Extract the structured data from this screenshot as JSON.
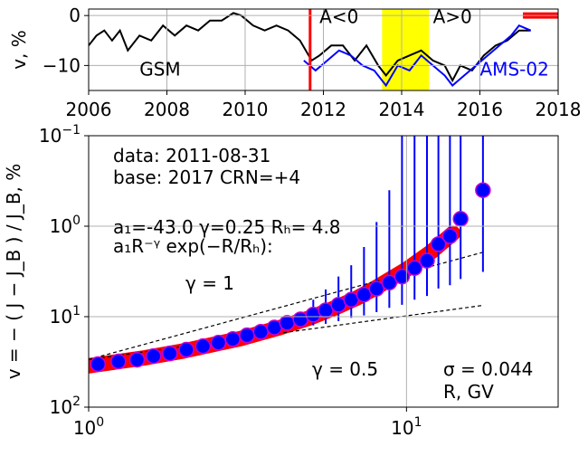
{
  "chart_data": [
    {
      "type": "line",
      "ylabel": "v, %",
      "xlim": [
        2006,
        2018
      ],
      "ylim": [
        -15,
        1.3
      ],
      "xticks": [
        2006,
        2008,
        2010,
        2012,
        2014,
        2016,
        2018
      ],
      "yticks": [
        {
          "value": -10,
          "label": "−10"
        },
        0
      ],
      "grid": true,
      "series": [
        {
          "name": "GSM",
          "color": "#000000",
          "x": [
            2006.0,
            2006.2,
            2006.4,
            2006.6,
            2006.8,
            2007.0,
            2007.3,
            2007.6,
            2007.9,
            2008.2,
            2008.5,
            2008.8,
            2009.1,
            2009.4,
            2009.7,
            2009.9,
            2010.2,
            2010.5,
            2010.8,
            2011.1,
            2011.4,
            2011.7,
            2011.9,
            2012.2,
            2012.5,
            2012.8,
            2013.1,
            2013.4,
            2013.6,
            2013.9,
            2014.2,
            2014.5,
            2014.8,
            2015.1,
            2015.3,
            2015.5,
            2015.8,
            2016.1,
            2016.4,
            2016.7,
            2017.0,
            2017.3
          ],
          "values": [
            -6,
            -4,
            -3,
            -5,
            -3,
            -7,
            -4,
            -5,
            -2,
            -4,
            -2,
            -3,
            -1,
            -1,
            0.5,
            0,
            -2,
            -3,
            -2,
            -3,
            -5,
            -9,
            -8,
            -6,
            -6,
            -9,
            -6,
            -10,
            -12,
            -9,
            -8,
            -7,
            -9,
            -10,
            -13,
            -10,
            -11,
            -8,
            -6,
            -5,
            -3,
            -3
          ],
          "label_x": 2007.3,
          "label_y": -12
        },
        {
          "name": "AMS-02",
          "color": "#0000ff",
          "x": [
            2011.5,
            2011.8,
            2012.1,
            2012.4,
            2012.7,
            2013.0,
            2013.3,
            2013.6,
            2013.9,
            2014.2,
            2014.5,
            2014.8,
            2015.1,
            2015.3,
            2015.6,
            2015.9,
            2016.2,
            2016.5,
            2016.8,
            2017.0,
            2017.3
          ],
          "values": [
            -9,
            -11,
            -9,
            -7,
            -8,
            -10,
            -11,
            -14,
            -10,
            -11,
            -8,
            -10,
            -12,
            -14,
            -12,
            -10,
            -8,
            -6,
            -4,
            -2,
            -3
          ],
          "label_x": 2016.0,
          "label_y": -12
        }
      ],
      "marker_line": 2011.66,
      "marker_color": "#ff0000",
      "span": [
        2013.5,
        2014.7
      ],
      "span_color": "#ffff00",
      "bar": [
        2017.1,
        2018
      ],
      "bar_y": 0,
      "bar_color": "#ff0000",
      "annotations": [
        {
          "text": "A<0",
          "x": 2011.9,
          "y": -1.5
        },
        {
          "text": "A>0",
          "x": 2014.8,
          "y": -1.5
        }
      ]
    },
    {
      "type": "scatter",
      "ylabel": "v = − ( J − J_B ) / J_B, %",
      "xlabel": "R, GV",
      "log": true,
      "xlim": [
        1,
        30
      ],
      "ylim": [
        100,
        0.1
      ],
      "xticks": [
        {
          "value": 1,
          "label": "10",
          "exponent": "0"
        },
        {
          "value": 10,
          "label": "10",
          "exponent": "1"
        }
      ],
      "yticks": [
        {
          "value": 0.1,
          "label": "10",
          "exponent": "−1"
        },
        {
          "value": 1,
          "label": "10",
          "exponent": "0"
        },
        {
          "value": 10,
          "label": "10",
          "exponent": "1"
        },
        {
          "value": 100,
          "label": "10",
          "exponent": "2"
        }
      ],
      "grid": true,
      "texts": [
        "data: 2011-08-31",
        "base: 2017   CRN=+4",
        "a₁=-43.0  γ=0.25  Rₕ=  4.8",
        "a₁R⁻ᵞ exp(−R/Rₕ):",
        "γ = 1",
        "γ = 0.5",
        "σ = 0.044"
      ],
      "points": {
        "color": "#0000ff",
        "edge": "#cc00cc",
        "error_color": "#0000ff",
        "x": [
          1.07,
          1.24,
          1.42,
          1.6,
          1.8,
          2.03,
          2.29,
          2.56,
          2.84,
          3.15,
          3.48,
          3.84,
          4.21,
          4.64,
          5.09,
          5.57,
          6.11,
          6.7,
          7.35,
          8.05,
          8.83,
          9.68,
          10.6,
          11.6,
          12.6,
          13.7,
          14.8,
          17.4
        ],
        "values": [
          33.5,
          31.3,
          29.9,
          27.3,
          25.5,
          23.2,
          21.2,
          19.4,
          17.7,
          16.1,
          14.7,
          13.2,
          11.7,
          10.7,
          9.5,
          8.5,
          7.4,
          6.5,
          5.7,
          4.9,
          4.2,
          3.6,
          2.9,
          2.4,
          1.58,
          1.29,
          0.83,
          0.4
        ],
        "errors": [
          0.5,
          0.5,
          0.5,
          0.6,
          0.6,
          0.6,
          0.7,
          0.7,
          0.8,
          0.8,
          0.9,
          1.0,
          1.2,
          1.6,
          3.0,
          3.5,
          3.8,
          3.8,
          4.0,
          4.0,
          3.8,
          3.8,
          3.6,
          3.5,
          3.3,
          3.2,
          3.0,
          2.8
        ]
      },
      "fit": {
        "color": "#ff0000",
        "x": [
          1,
          1.5,
          2,
          3,
          4,
          5,
          6,
          7,
          8,
          10,
          12,
          14
        ],
        "values": [
          34.9,
          28.5,
          23.8,
          17.5,
          13.2,
          10.2,
          7.9,
          6.2,
          4.8,
          3.0,
          1.9,
          1.2
        ]
      },
      "guides": [
        {
          "x": [
            1,
            17.4
          ],
          "values": [
            29.7,
            1.94
          ]
        },
        {
          "x": [
            1,
            17.4
          ],
          "values": [
            29.7,
            7.5
          ]
        }
      ]
    }
  ]
}
